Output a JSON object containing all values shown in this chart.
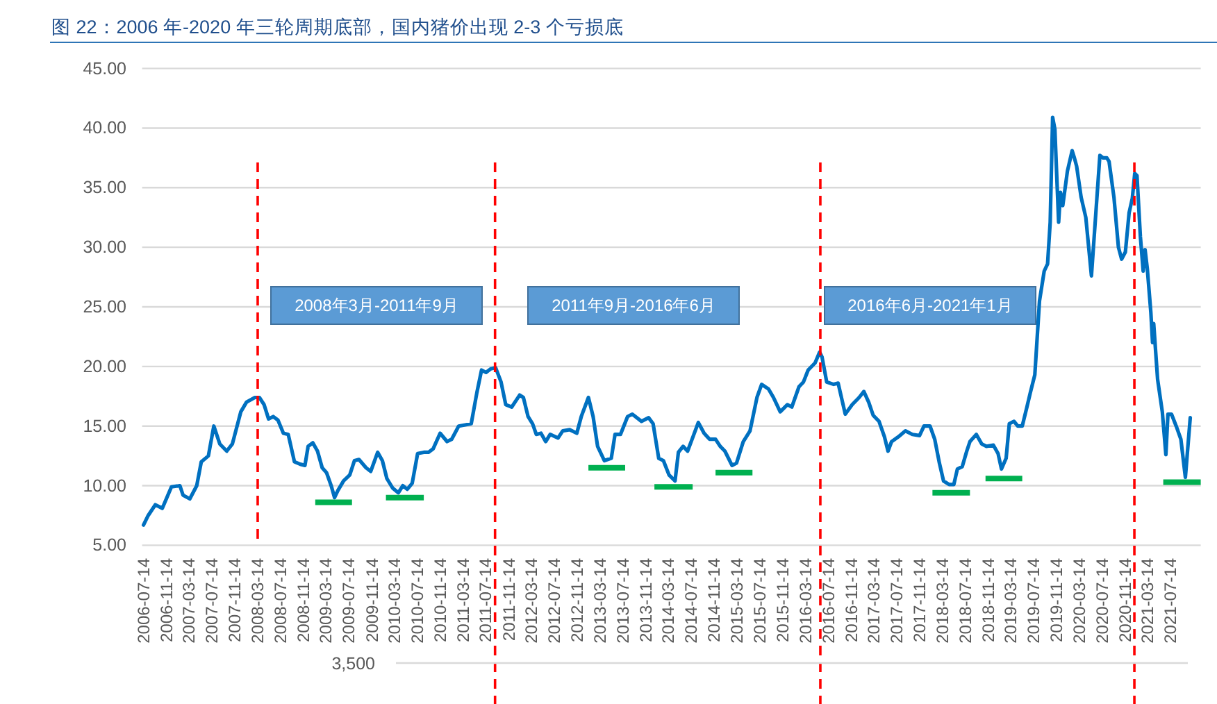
{
  "chart_data": {
    "type": "line",
    "title": "图 22：2006 年-2020 年三轮周期底部，国内猪价出现 2-3 个亏损底",
    "xlim": [
      "2006-07-14",
      "2021-12-21"
    ],
    "xticks": [
      "2006-07-14",
      "2006-11-14",
      "2007-03-14",
      "2007-07-14",
      "2007-11-14",
      "2008-03-14",
      "2008-07-14",
      "2008-11-14",
      "2009-03-14",
      "2009-07-14",
      "2009-11-14",
      "2010-03-14",
      "2010-07-14",
      "2010-11-14",
      "2011-03-14",
      "2011-07-14",
      "2011-11-14",
      "2012-03-14",
      "2012-07-14",
      "2012-11-14",
      "2013-03-14",
      "2013-07-14",
      "2013-11-14",
      "2014-03-14",
      "2014-07-14",
      "2014-11-14",
      "2015-03-14",
      "2015-07-14",
      "2015-11-14",
      "2016-03-14",
      "2016-07-14",
      "2016-11-14",
      "2017-03-14",
      "2017-07-14",
      "2017-11-14",
      "2018-03-14",
      "2018-07-14",
      "2018-11-14",
      "2019-03-14",
      "2019-07-14",
      "2019-11-14",
      "2020-03-14",
      "2020-07-14",
      "2020-11-14",
      "2021-03-14",
      "2021-07-14"
    ],
    "ylim": [
      5,
      45
    ],
    "yticks": [
      {
        "value": 5,
        "label": "5.00"
      },
      {
        "value": 10,
        "label": "10.00"
      },
      {
        "value": 15,
        "label": "15.00"
      },
      {
        "value": 20,
        "label": "20.00"
      },
      {
        "value": 25,
        "label": "25.00"
      },
      {
        "value": 30,
        "label": "30.00"
      },
      {
        "value": 35,
        "label": "35.00"
      },
      {
        "value": 40,
        "label": "40.00"
      },
      {
        "value": 45,
        "label": "45.00"
      }
    ],
    "grid": "y",
    "series": [
      {
        "color": "#0070c0",
        "x": [
          "2006-07-14",
          "2006-08-08",
          "2006-09-15",
          "2006-10-22",
          "2006-12-10",
          "2007-01-24",
          "2007-02-10",
          "2007-03-18",
          "2007-04-24",
          "2007-05-18",
          "2007-06-25",
          "2007-07-24",
          "2007-08-25",
          "2007-10-01",
          "2007-10-31",
          "2007-12-15",
          "2008-01-14",
          "2008-02-28",
          "2008-03-23",
          "2008-04-17",
          "2008-05-11",
          "2008-06-05",
          "2008-06-30",
          "2008-07-29",
          "2008-08-24",
          "2008-09-26",
          "2008-10-27",
          "2008-11-21",
          "2008-12-08",
          "2009-01-02",
          "2009-01-27",
          "2009-02-21",
          "2009-03-16",
          "2009-04-10",
          "2009-04-28",
          "2009-05-16",
          "2009-06-15",
          "2009-07-18",
          "2009-08-12",
          "2009-09-05",
          "2009-10-13",
          "2009-11-07",
          "2009-12-14",
          "2010-01-08",
          "2010-02-01",
          "2010-03-04",
          "2010-04-03",
          "2010-04-27",
          "2010-05-21",
          "2010-06-16",
          "2010-07-15",
          "2010-08-17",
          "2010-09-11",
          "2010-10-06",
          "2010-11-12",
          "2010-12-19",
          "2011-01-13",
          "2011-02-19",
          "2011-03-26",
          "2011-04-27",
          "2011-05-27",
          "2011-06-21",
          "2011-07-15",
          "2011-08-09",
          "2011-09-04",
          "2011-10-03",
          "2011-10-28",
          "2011-11-29",
          "2012-01-10",
          "2012-01-30",
          "2012-02-24",
          "2012-03-19",
          "2012-04-08",
          "2012-05-03",
          "2012-05-28",
          "2012-06-21",
          "2012-08-02",
          "2012-08-27",
          "2012-10-03",
          "2012-11-10",
          "2012-12-04",
          "2013-01-11",
          "2013-02-05",
          "2013-03-01",
          "2013-04-06",
          "2013-05-13",
          "2013-06-02",
          "2013-07-01",
          "2013-08-08",
          "2013-09-02",
          "2013-10-21",
          "2013-11-28",
          "2013-12-22",
          "2014-01-21",
          "2014-02-15",
          "2014-03-17",
          "2014-04-18",
          "2014-05-06",
          "2014-05-31",
          "2014-06-24",
          "2014-07-18",
          "2014-08-20",
          "2014-09-20",
          "2014-10-19",
          "2014-11-20",
          "2014-12-15",
          "2015-01-09",
          "2015-02-16",
          "2015-03-12",
          "2015-04-17",
          "2015-05-23",
          "2015-06-29",
          "2015-07-24",
          "2015-08-30",
          "2015-09-25",
          "2015-10-31",
          "2015-12-08",
          "2016-01-01",
          "2016-02-08",
          "2016-03-03",
          "2016-03-28",
          "2016-05-04",
          "2016-05-28",
          "2016-06-10",
          "2016-07-05",
          "2016-08-11",
          "2016-09-04",
          "2016-10-12",
          "2016-11-18",
          "2016-12-25",
          "2017-01-19",
          "2017-02-14",
          "2017-03-10",
          "2017-04-10",
          "2017-05-09",
          "2017-05-28",
          "2017-06-16",
          "2017-07-22",
          "2017-08-29",
          "2017-10-05",
          "2017-11-12",
          "2017-12-06",
          "2018-01-07",
          "2018-02-01",
          "2018-02-26",
          "2018-03-20",
          "2018-04-19",
          "2018-05-14",
          "2018-06-02",
          "2018-06-28",
          "2018-07-22",
          "2018-08-08",
          "2018-09-11",
          "2018-10-10",
          "2018-11-04",
          "2018-12-11",
          "2019-01-05",
          "2019-01-23",
          "2019-02-17",
          "2019-03-06",
          "2019-03-31",
          "2019-04-20",
          "2019-05-14",
          "2019-06-08",
          "2019-06-26",
          "2019-07-20",
          "2019-08-14",
          "2019-09-08",
          "2019-09-26",
          "2019-10-10",
          "2019-10-23",
          "2019-11-04",
          "2019-11-17",
          "2019-11-24",
          "2019-12-04",
          "2019-12-16",
          "2020-01-10",
          "2020-02-04",
          "2020-02-16",
          "2020-02-28",
          "2020-03-23",
          "2020-04-17",
          "2020-05-17",
          "2020-06-06",
          "2020-07-01",
          "2020-07-18",
          "2020-08-07",
          "2020-08-19",
          "2020-09-14",
          "2020-10-08",
          "2020-10-25",
          "2020-11-14",
          "2020-12-04",
          "2020-12-21",
          "2021-01-03",
          "2021-01-15",
          "2021-02-02",
          "2021-02-17",
          "2021-02-27",
          "2021-03-11",
          "2021-03-30",
          "2021-04-08",
          "2021-04-14",
          "2021-05-05",
          "2021-05-30",
          "2021-06-18",
          "2021-06-29",
          "2021-07-18",
          "2021-08-12",
          "2021-09-06",
          "2021-09-30",
          "2021-10-26"
        ],
        "values": [
          6.7,
          7.5,
          8.4,
          8.1,
          9.9,
          10.0,
          9.2,
          8.9,
          10.0,
          12.0,
          12.5,
          15.0,
          13.5,
          12.9,
          13.5,
          16.2,
          17.0,
          17.4,
          17.4,
          16.8,
          15.6,
          15.8,
          15.5,
          14.4,
          14.3,
          12.0,
          11.8,
          11.7,
          13.3,
          13.6,
          12.9,
          11.5,
          11.1,
          10.0,
          9.0,
          9.6,
          10.4,
          10.9,
          12.1,
          12.2,
          11.5,
          11.2,
          12.8,
          12.1,
          10.6,
          9.8,
          9.4,
          10.0,
          9.7,
          10.2,
          12.7,
          12.8,
          12.8,
          13.1,
          14.4,
          13.7,
          13.9,
          15.0,
          15.1,
          15.2,
          17.8,
          19.7,
          19.5,
          19.8,
          19.9,
          18.7,
          16.8,
          16.6,
          17.6,
          17.4,
          15.8,
          15.2,
          14.3,
          14.4,
          13.7,
          14.3,
          14.0,
          14.6,
          14.7,
          14.4,
          15.8,
          17.4,
          15.8,
          13.3,
          12.1,
          12.3,
          14.3,
          14.3,
          15.8,
          16.0,
          15.4,
          15.7,
          15.2,
          12.3,
          12.1,
          10.9,
          10.4,
          12.8,
          13.3,
          12.9,
          13.9,
          15.3,
          14.4,
          13.9,
          13.9,
          13.3,
          12.9,
          11.7,
          11.9,
          13.7,
          14.6,
          17.4,
          18.5,
          18.1,
          17.4,
          16.2,
          16.8,
          16.6,
          18.3,
          18.7,
          19.7,
          20.3,
          21.2,
          20.8,
          18.7,
          18.5,
          18.6,
          16.0,
          16.8,
          17.4,
          17.9,
          17.0,
          15.9,
          15.4,
          14.1,
          12.9,
          13.7,
          14.1,
          14.6,
          14.3,
          14.2,
          15.0,
          15.0,
          13.9,
          11.9,
          10.4,
          10.1,
          10.1,
          11.4,
          11.6,
          12.9,
          13.7,
          14.3,
          13.5,
          13.3,
          13.4,
          12.7,
          11.4,
          12.3,
          15.2,
          15.4,
          15.0,
          15.0,
          16.6,
          17.8,
          19.3,
          25.5,
          28.0,
          28.6,
          32.1,
          40.9,
          39.9,
          34.8,
          32.1,
          34.6,
          33.5,
          36.4,
          38.1,
          37.5,
          36.8,
          34.2,
          32.5,
          27.6,
          32.1,
          37.7,
          37.5,
          37.5,
          37.2,
          34.2,
          30.0,
          29.0,
          29.6,
          32.9,
          34.1,
          36.2,
          36.0,
          30.9,
          28.0,
          29.8,
          28.2,
          24.5,
          22.0,
          23.6,
          18.9,
          16.2,
          12.6,
          16.0,
          16.0,
          15.0,
          13.9,
          10.7,
          15.7
        ]
      },
      {
        "color": "#00b050",
        "x": [
          "2009-01-15",
          "2009-07-30"
        ],
        "values": [
          8.6,
          8.6
        ]
      },
      {
        "color": "#00b050",
        "x": [
          "2010-01-27",
          "2010-08-17"
        ],
        "values": [
          9.0,
          9.0
        ]
      },
      {
        "color": "#00b050",
        "x": [
          "2013-01-11",
          "2013-07-26"
        ],
        "values": [
          11.5,
          11.5
        ]
      },
      {
        "color": "#00b050",
        "x": [
          "2013-12-29",
          "2014-07-21"
        ],
        "values": [
          9.9,
          9.9
        ]
      },
      {
        "color": "#00b050",
        "x": [
          "2014-11-20",
          "2015-06-05"
        ],
        "values": [
          11.1,
          11.1
        ]
      },
      {
        "color": "#00b050",
        "x": [
          "2018-01-20",
          "2018-08-08"
        ],
        "values": [
          9.4,
          9.4
        ]
      },
      {
        "color": "#00b050",
        "x": [
          "2018-10-30",
          "2019-05-14"
        ],
        "values": [
          10.6,
          10.6
        ]
      },
      {
        "color": "#00b050",
        "x": [
          "2021-06-04",
          "2021-12-21"
        ],
        "values": [
          10.3,
          10.3
        ]
      }
    ],
    "ref_lines": [
      {
        "axis": "x",
        "value": "2008-03-14",
        "color": "#ff0000",
        "line_style": "dashed"
      },
      {
        "axis": "x",
        "value": "2011-09-01",
        "color": "#ff0000",
        "line_style": "dashed"
      },
      {
        "axis": "x",
        "value": "2016-06-01",
        "color": "#ff0000",
        "line_style": "dashed"
      },
      {
        "axis": "x",
        "value": "2021-01-01",
        "color": "#ff0000",
        "line_style": "dashed"
      }
    ],
    "annotations": [
      "2008年3月-2011年9月",
      "2011年9月-2016年6月",
      "2016年6月-2021年1月",
      "3,500"
    ]
  }
}
